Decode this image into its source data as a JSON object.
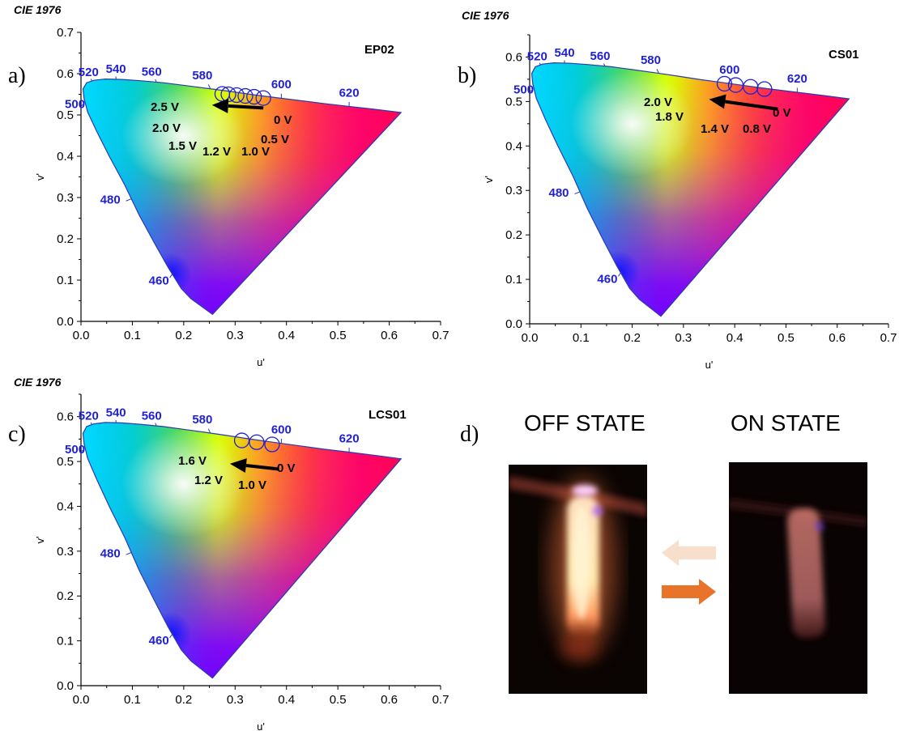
{
  "chart_data": [
    {
      "type": "scatter",
      "panel_label": "a)",
      "header": "CIE 1976",
      "sample": "EP02",
      "xlabel": "u'",
      "ylabel": "v'",
      "xlim": [
        0.0,
        0.7
      ],
      "ylim": [
        0.0,
        0.7
      ],
      "xticks": [
        "0.0",
        "0.1",
        "0.2",
        "0.3",
        "0.4",
        "0.5",
        "0.6",
        "0.7"
      ],
      "yticks": [
        "0.0",
        "0.1",
        "0.2",
        "0.3",
        "0.4",
        "0.5",
        "0.6",
        "0.7"
      ],
      "wavelength_labels": [
        "460",
        "480",
        "500",
        "520",
        "540",
        "560",
        "580",
        "600",
        "620"
      ],
      "points": [
        {
          "x": 0.355,
          "y": 0.541
        },
        {
          "x": 0.337,
          "y": 0.544
        },
        {
          "x": 0.32,
          "y": 0.546
        },
        {
          "x": 0.303,
          "y": 0.548
        },
        {
          "x": 0.287,
          "y": 0.55
        },
        {
          "x": 0.275,
          "y": 0.551
        }
      ],
      "voltage_labels": [
        "0 V",
        "0.5 V",
        "1.0 V",
        "1.2 V",
        "1.5 V",
        "2.0 V",
        "2.5 V"
      ],
      "arrow": {
        "x1": 0.355,
        "y1": 0.517,
        "x2": 0.255,
        "y2": 0.524
      }
    },
    {
      "type": "scatter",
      "panel_label": "b)",
      "header": "CIE 1976",
      "sample": "CS01",
      "xlabel": "u'",
      "ylabel": "v'",
      "xlim": [
        0.0,
        0.7
      ],
      "ylim": [
        0.0,
        0.65
      ],
      "xticks": [
        "0.0",
        "0.1",
        "0.2",
        "0.3",
        "0.4",
        "0.5",
        "0.6",
        "0.7"
      ],
      "yticks": [
        "0.0",
        "0.1",
        "0.2",
        "0.3",
        "0.4",
        "0.5",
        "0.6"
      ],
      "wavelength_labels": [
        "460",
        "480",
        "500",
        "520",
        "540",
        "560",
        "580",
        "600",
        "620"
      ],
      "points": [
        {
          "x": 0.458,
          "y": 0.528
        },
        {
          "x": 0.431,
          "y": 0.533
        },
        {
          "x": 0.402,
          "y": 0.537
        },
        {
          "x": 0.38,
          "y": 0.54
        }
      ],
      "voltage_labels": [
        "0 V",
        "0.8 V",
        "1.4 V",
        "1.8 V",
        "2.0 V"
      ],
      "arrow": {
        "x1": 0.484,
        "y1": 0.483,
        "x2": 0.35,
        "y2": 0.505
      }
    },
    {
      "type": "scatter",
      "panel_label": "c)",
      "header": "CIE 1976",
      "sample": "LCS01",
      "xlabel": "u'",
      "ylabel": "v'",
      "xlim": [
        0.0,
        0.7
      ],
      "ylim": [
        0.0,
        0.65
      ],
      "xticks": [
        "0.0",
        "0.1",
        "0.2",
        "0.3",
        "0.4",
        "0.5",
        "0.6",
        "0.7"
      ],
      "yticks": [
        "0.0",
        "0.1",
        "0.2",
        "0.3",
        "0.4",
        "0.5",
        "0.6"
      ],
      "wavelength_labels": [
        "460",
        "480",
        "500",
        "520",
        "540",
        "560",
        "580",
        "600",
        "620"
      ],
      "points": [
        {
          "x": 0.372,
          "y": 0.538
        },
        {
          "x": 0.342,
          "y": 0.543
        },
        {
          "x": 0.313,
          "y": 0.547
        }
      ],
      "voltage_labels": [
        "0 V",
        "1.0 V",
        "1.2 V",
        "1.6 V"
      ],
      "arrow": {
        "x1": 0.385,
        "y1": 0.483,
        "x2": 0.29,
        "y2": 0.495
      }
    }
  ],
  "panel_d": {
    "label": "d)",
    "off_state": "OFF STATE",
    "on_state": "ON STATE",
    "arrow_to_on_color": "#e8732a",
    "arrow_to_off_color": "#f7dfcc"
  },
  "colors": {
    "wavelength_text": "#1f1fd6",
    "marker": "#1f1fd6",
    "locus_line": "#2a3ab0"
  }
}
